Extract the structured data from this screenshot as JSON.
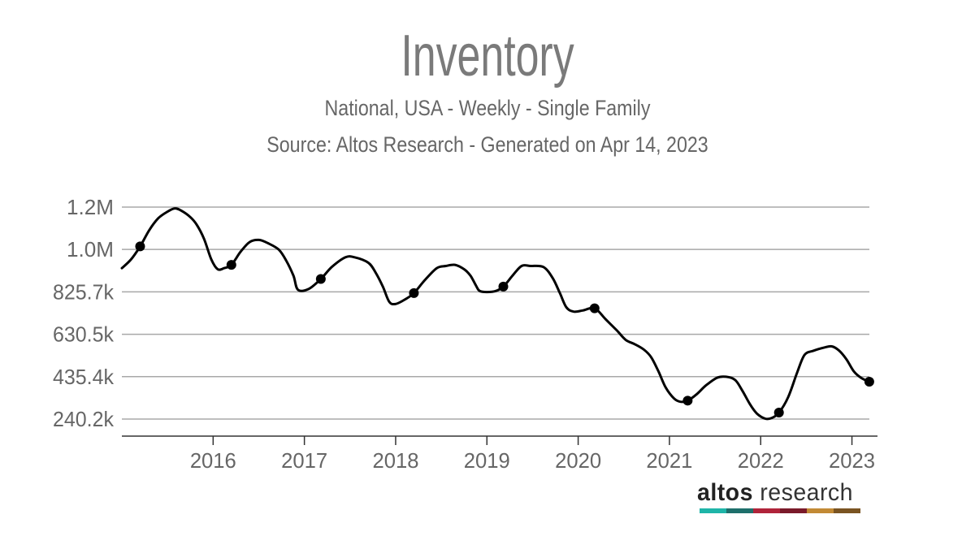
{
  "header": {
    "title": "Inventory",
    "subtitle": "National, USA - Weekly - Single Family",
    "source": "Source: Altos Research - Generated on Apr 14, 2023"
  },
  "logo": {
    "word1": "altos",
    "word2": " research",
    "colors": [
      "#1fb5a8",
      "#1e6f6b",
      "#b0243a",
      "#7a1a2a",
      "#c28a35",
      "#7a5422"
    ]
  },
  "chart_data": {
    "type": "line",
    "title": "Inventory",
    "subtitle": "National, USA - Weekly - Single Family",
    "xlabel": "",
    "ylabel": "",
    "x_ticks": [
      {
        "label": "2016",
        "x": 2016.0
      },
      {
        "label": "2017",
        "x": 2017.0
      },
      {
        "label": "2018",
        "x": 2018.0
      },
      {
        "label": "2019",
        "x": 2019.0
      },
      {
        "label": "2020",
        "x": 2020.0
      },
      {
        "label": "2021",
        "x": 2021.0
      },
      {
        "label": "2022",
        "x": 2022.0
      },
      {
        "label": "2023",
        "x": 2023.0
      }
    ],
    "y_ticks": [
      {
        "label": "240.2k",
        "value": 240200
      },
      {
        "label": "435.4k",
        "value": 435400
      },
      {
        "label": "630.5k",
        "value": 630500
      },
      {
        "label": "825.7k",
        "value": 825700
      },
      {
        "label": "1.0M",
        "value": 1020900
      },
      {
        "label": "1.2M",
        "value": 1216000
      }
    ],
    "xlim": [
      2015.0,
      2023.28
    ],
    "ylim": [
      162000,
      1216000
    ],
    "grid": true,
    "color": "#000000",
    "series": [
      {
        "values": [
          [
            2015.0,
            935000
          ],
          [
            2015.1,
            975000
          ],
          [
            2015.2,
            1035000
          ],
          [
            2015.3,
            1110000
          ],
          [
            2015.4,
            1165000
          ],
          [
            2015.5,
            1195000
          ],
          [
            2015.58,
            1210000
          ],
          [
            2015.65,
            1200000
          ],
          [
            2015.75,
            1170000
          ],
          [
            2015.82,
            1135000
          ],
          [
            2015.9,
            1070000
          ],
          [
            2015.98,
            975000
          ],
          [
            2016.05,
            930000
          ],
          [
            2016.12,
            935000
          ],
          [
            2016.2,
            950000
          ],
          [
            2016.3,
            1010000
          ],
          [
            2016.4,
            1055000
          ],
          [
            2016.5,
            1065000
          ],
          [
            2016.6,
            1050000
          ],
          [
            2016.72,
            1020000
          ],
          [
            2016.8,
            970000
          ],
          [
            2016.88,
            900000
          ],
          [
            2016.93,
            835000
          ],
          [
            2017.05,
            840000
          ],
          [
            2017.18,
            885000
          ],
          [
            2017.3,
            940000
          ],
          [
            2017.45,
            985000
          ],
          [
            2017.55,
            985000
          ],
          [
            2017.7,
            960000
          ],
          [
            2017.78,
            915000
          ],
          [
            2017.86,
            850000
          ],
          [
            2017.93,
            780000
          ],
          [
            2018.0,
            770000
          ],
          [
            2018.1,
            790000
          ],
          [
            2018.2,
            820000
          ],
          [
            2018.32,
            880000
          ],
          [
            2018.45,
            935000
          ],
          [
            2018.55,
            945000
          ],
          [
            2018.65,
            950000
          ],
          [
            2018.75,
            930000
          ],
          [
            2018.82,
            900000
          ],
          [
            2018.88,
            855000
          ],
          [
            2018.92,
            830000
          ],
          [
            2019.0,
            825000
          ],
          [
            2019.1,
            830000
          ],
          [
            2019.18,
            850000
          ],
          [
            2019.28,
            900000
          ],
          [
            2019.38,
            945000
          ],
          [
            2019.48,
            945000
          ],
          [
            2019.62,
            940000
          ],
          [
            2019.72,
            890000
          ],
          [
            2019.8,
            820000
          ],
          [
            2019.87,
            755000
          ],
          [
            2019.95,
            735000
          ],
          [
            2020.05,
            740000
          ],
          [
            2020.18,
            750000
          ],
          [
            2020.3,
            700000
          ],
          [
            2020.42,
            650000
          ],
          [
            2020.52,
            605000
          ],
          [
            2020.62,
            585000
          ],
          [
            2020.72,
            560000
          ],
          [
            2020.8,
            525000
          ],
          [
            2020.88,
            460000
          ],
          [
            2020.96,
            385000
          ],
          [
            2021.05,
            335000
          ],
          [
            2021.12,
            320000
          ],
          [
            2021.2,
            325000
          ],
          [
            2021.3,
            355000
          ],
          [
            2021.4,
            395000
          ],
          [
            2021.52,
            430000
          ],
          [
            2021.62,
            435000
          ],
          [
            2021.72,
            420000
          ],
          [
            2021.8,
            370000
          ],
          [
            2021.88,
            310000
          ],
          [
            2021.96,
            265000
          ],
          [
            2022.05,
            242000
          ],
          [
            2022.12,
            245000
          ],
          [
            2022.2,
            270000
          ],
          [
            2022.3,
            340000
          ],
          [
            2022.4,
            455000
          ],
          [
            2022.48,
            535000
          ],
          [
            2022.58,
            555000
          ],
          [
            2022.7,
            570000
          ],
          [
            2022.78,
            575000
          ],
          [
            2022.86,
            555000
          ],
          [
            2022.94,
            515000
          ],
          [
            2023.02,
            460000
          ],
          [
            2023.1,
            430000
          ],
          [
            2023.19,
            412000
          ]
        ],
        "markers": [
          [
            2015.2,
            1035000
          ],
          [
            2016.2,
            950000
          ],
          [
            2017.18,
            885000
          ],
          [
            2018.2,
            820000
          ],
          [
            2019.18,
            850000
          ],
          [
            2020.18,
            750000
          ],
          [
            2021.2,
            325000
          ],
          [
            2022.2,
            270000
          ],
          [
            2023.19,
            412000
          ]
        ]
      }
    ]
  }
}
